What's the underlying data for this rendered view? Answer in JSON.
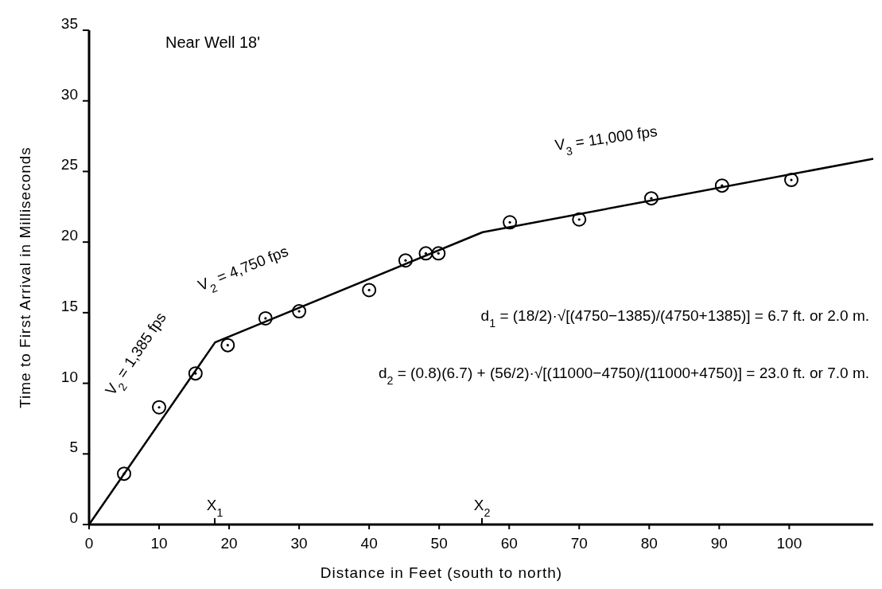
{
  "chart_data": {
    "type": "scatter",
    "title": "Near Well 18'",
    "xlabel": "Distance in Feet  (south to north)",
    "ylabel": "Time to First Arrival in Milliseconds",
    "xlim": [
      0,
      112
    ],
    "xticks": [
      0,
      10,
      20,
      30,
      40,
      50,
      60,
      70,
      80,
      90,
      100
    ],
    "ylim": [
      0,
      35
    ],
    "yticks": [
      0,
      5,
      10,
      15,
      20,
      25,
      30,
      35
    ],
    "grid": false,
    "series": [
      {
        "marker": "circle",
        "color": "#000000",
        "x": [
          5,
          10,
          15.2,
          19.8,
          25.2,
          30,
          40,
          45.2,
          48.1,
          49.9,
          60.1,
          70,
          80.3,
          90.4,
          100.3
        ],
        "values": [
          3.6,
          8.3,
          10.7,
          12.7,
          14.6,
          15.1,
          16.6,
          18.7,
          19.2,
          19.2,
          21.4,
          21.6,
          23.1,
          24.0,
          24.4
        ]
      },
      {
        "type": "line",
        "color": "#000000",
        "line_style": "solid",
        "x": [
          0,
          18,
          56.2,
          112
        ],
        "values": [
          0,
          12.9,
          20.7,
          25.9
        ]
      }
    ],
    "annotations": [
      "V$_{2}$ = 1,385  fps",
      "V$_{2}$ = 4,750  fps",
      "V$_{3}$ = 11,000  fps",
      "X$_{1}$",
      "X$_{2}$",
      "d$_{1}$ = (18/2)·√[(4750−1385)/(4750+1385)] = 6.7 ft. or 2.0 m.",
      "d$_{2}$ = (0.8)(6.7) + (56/2)·√[(11000−4750)/(11000+4750)] = 23.0 ft. or 7.0 m."
    ]
  }
}
